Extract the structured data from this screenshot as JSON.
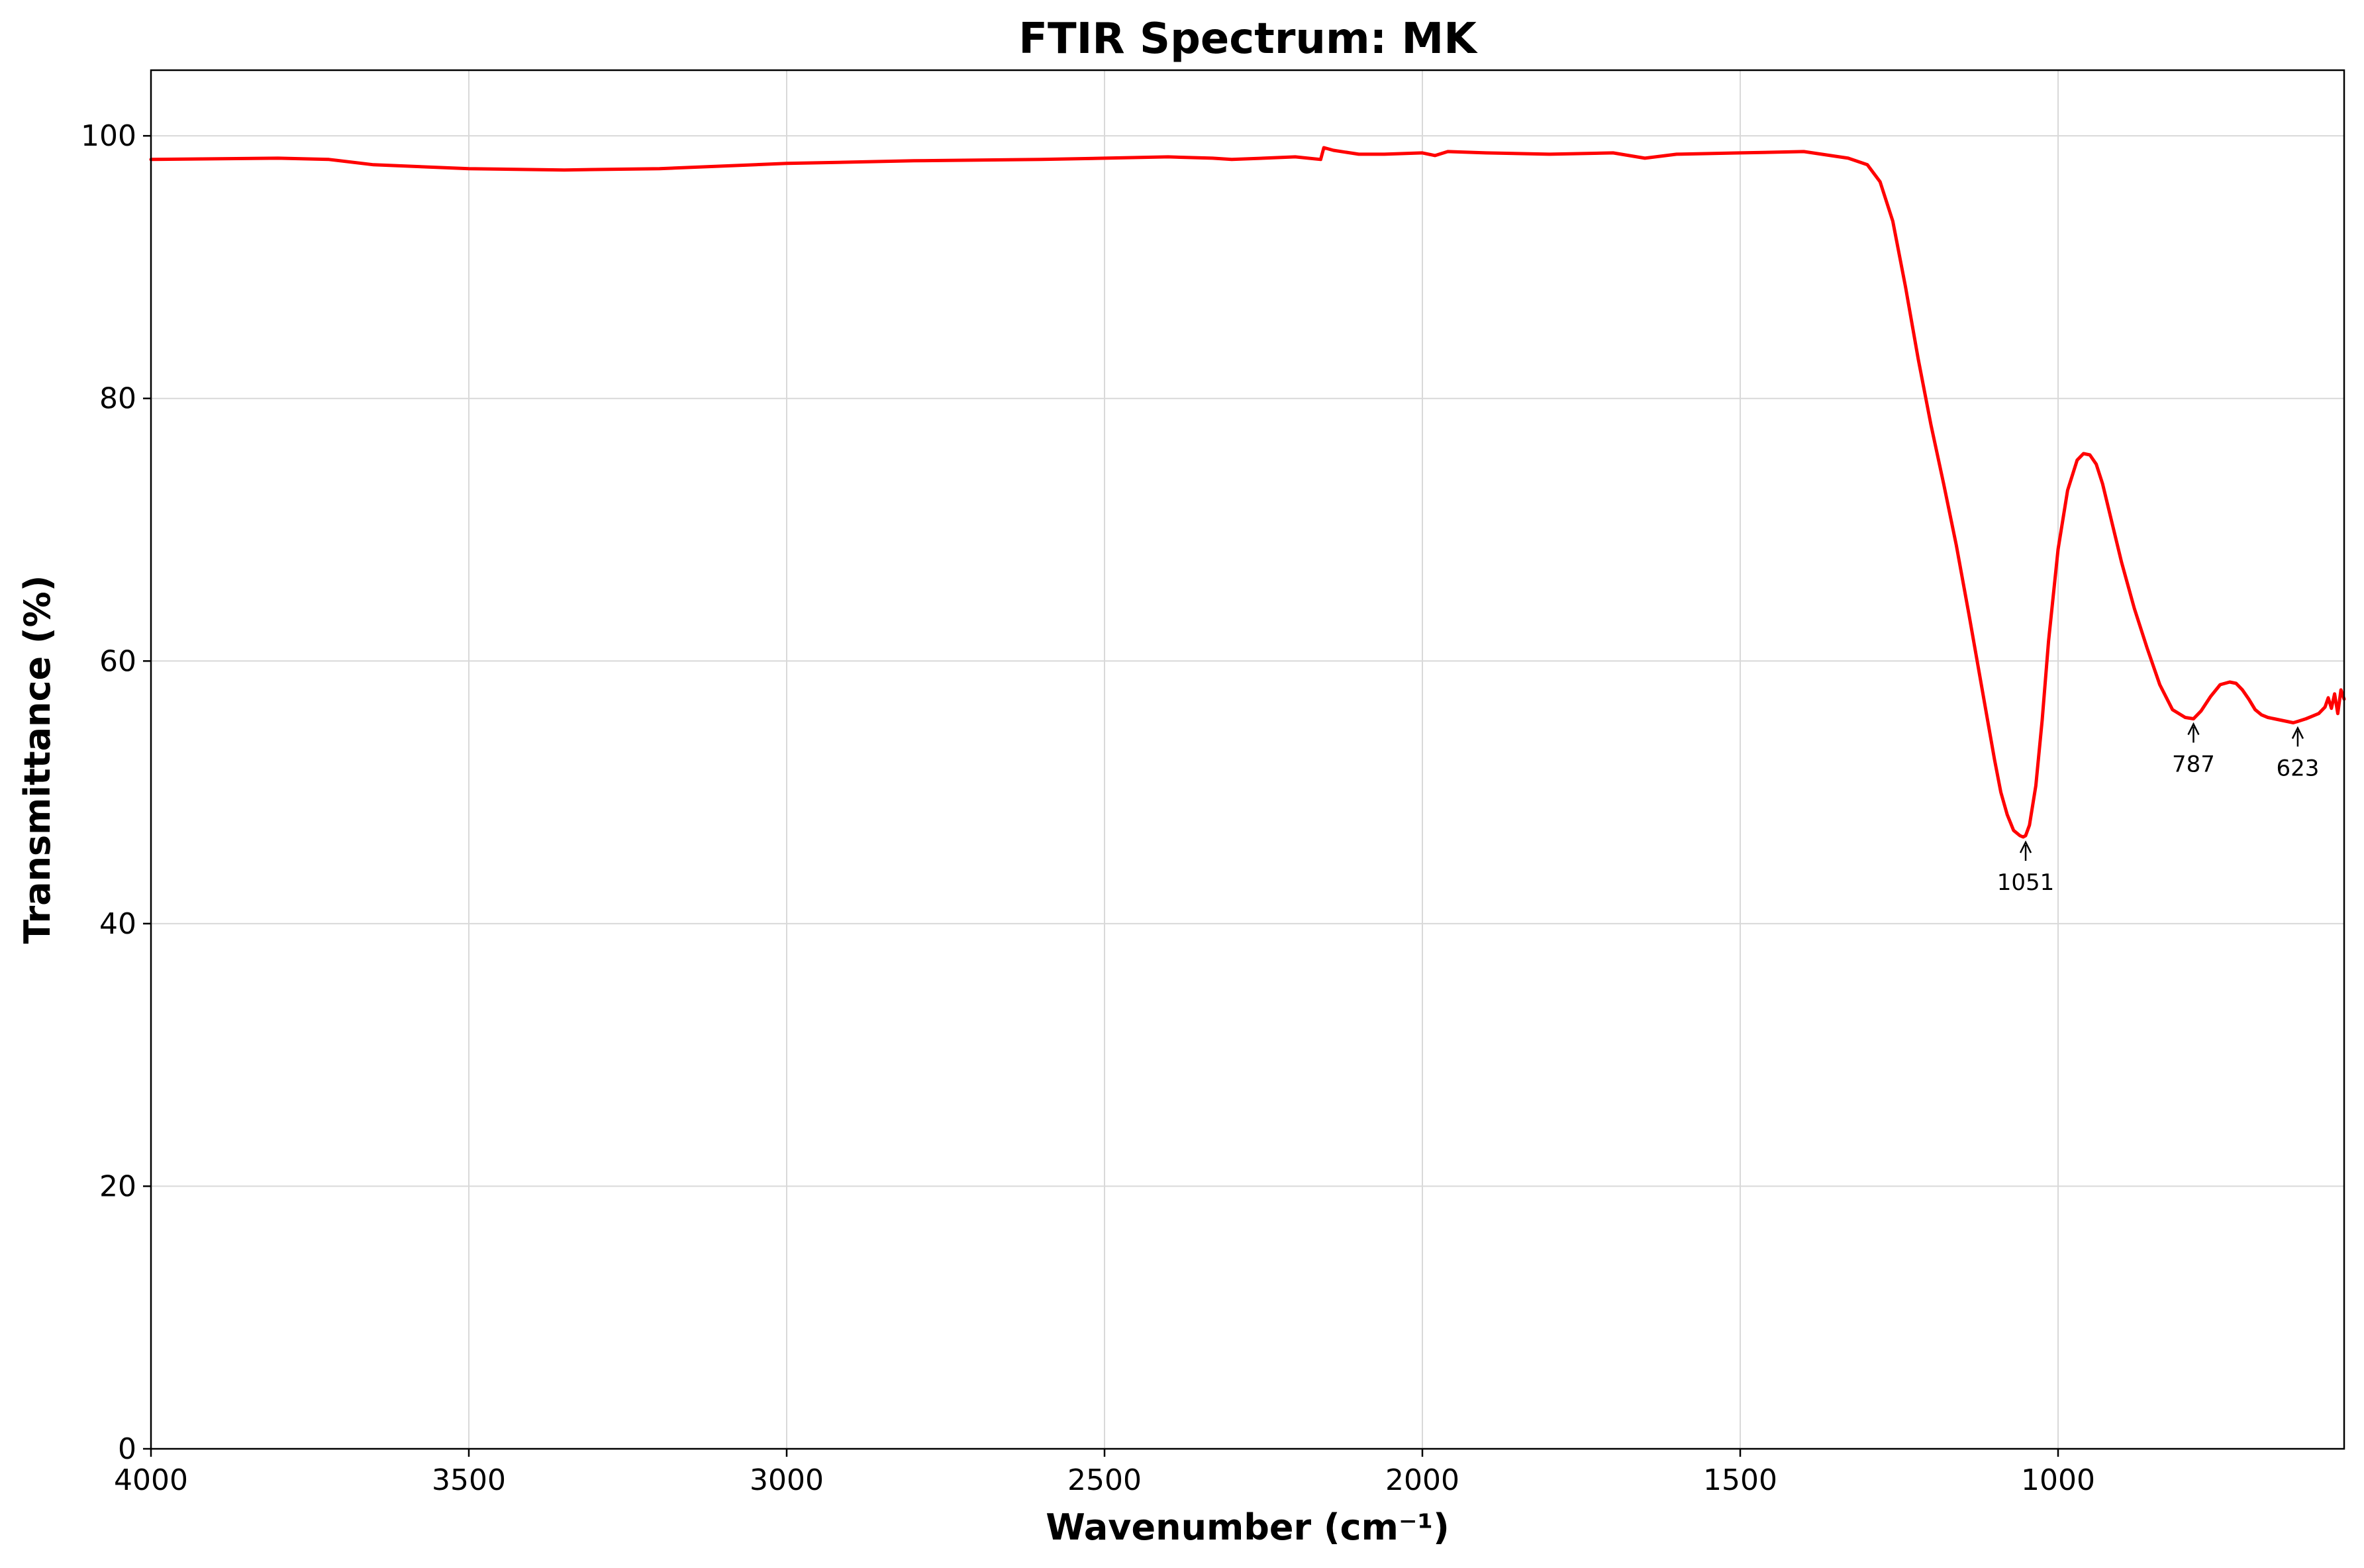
{
  "chart_data": {
    "type": "line",
    "title": "FTIR Spectrum: MK",
    "xlabel": "Wavenumber (cm⁻¹)",
    "ylabel": "Transmittance (%)",
    "xlim": [
      4000,
      550
    ],
    "ylim": [
      0,
      105
    ],
    "x_reversed": true,
    "grid": true,
    "xticks": [
      4000,
      3500,
      3000,
      2500,
      2000,
      1500,
      1000
    ],
    "yticks": [
      0,
      20,
      40,
      60,
      80,
      100
    ],
    "colors": {
      "line": "#ff0000",
      "grid": "#d9d9d9",
      "text": "#000000"
    },
    "series": [
      {
        "x": [
          4000,
          3800,
          3720,
          3650,
          3500,
          3350,
          3200,
          3000,
          2800,
          2600,
          2500,
          2400,
          2330,
          2300,
          2250,
          2200,
          2160,
          2155,
          2140,
          2100,
          2060,
          2000,
          1980,
          1960,
          1900,
          1800,
          1700,
          1650,
          1600,
          1500,
          1400,
          1330,
          1300,
          1280,
          1260,
          1240,
          1220,
          1200,
          1180,
          1160,
          1140,
          1120,
          1100,
          1090,
          1080,
          1070,
          1060,
          1055,
          1051,
          1045,
          1035,
          1025,
          1015,
          1000,
          985,
          970,
          960,
          950,
          940,
          930,
          920,
          900,
          880,
          860,
          840,
          820,
          800,
          787,
          775,
          760,
          745,
          730,
          720,
          710,
          700,
          690,
          680,
          670,
          660,
          650,
          640,
          630,
          623,
          610,
          600,
          590,
          580,
          575,
          570,
          565,
          560,
          555,
          550
        ],
        "y": [
          98.2,
          98.3,
          98.2,
          97.8,
          97.5,
          97.4,
          97.5,
          97.9,
          98.1,
          98.2,
          98.3,
          98.4,
          98.3,
          98.2,
          98.3,
          98.4,
          98.2,
          99.1,
          98.9,
          98.6,
          98.6,
          98.7,
          98.5,
          98.8,
          98.7,
          98.6,
          98.7,
          98.3,
          98.6,
          98.7,
          98.8,
          98.3,
          97.8,
          96.5,
          93.5,
          88.5,
          83.0,
          78.0,
          73.5,
          68.8,
          63.5,
          58.0,
          52.5,
          50.0,
          48.3,
          47.1,
          46.7,
          46.6,
          46.7,
          47.5,
          50.5,
          55.5,
          61.5,
          68.5,
          73.0,
          75.3,
          75.8,
          75.7,
          75.0,
          73.5,
          71.5,
          67.5,
          64.0,
          61.0,
          58.2,
          56.3,
          55.7,
          55.6,
          56.2,
          57.3,
          58.2,
          58.4,
          58.3,
          57.8,
          57.1,
          56.3,
          55.9,
          55.7,
          55.6,
          55.5,
          55.4,
          55.3,
          55.4,
          55.6,
          55.8,
          56.0,
          56.5,
          57.2,
          56.4,
          57.5,
          56.0,
          57.8,
          57.1
        ]
      }
    ],
    "annotations": [
      {
        "label": "1051",
        "x": 1051,
        "y": 46.6
      },
      {
        "label": "787",
        "x": 787,
        "y": 55.6
      },
      {
        "label": "623",
        "x": 623,
        "y": 55.3
      }
    ]
  }
}
